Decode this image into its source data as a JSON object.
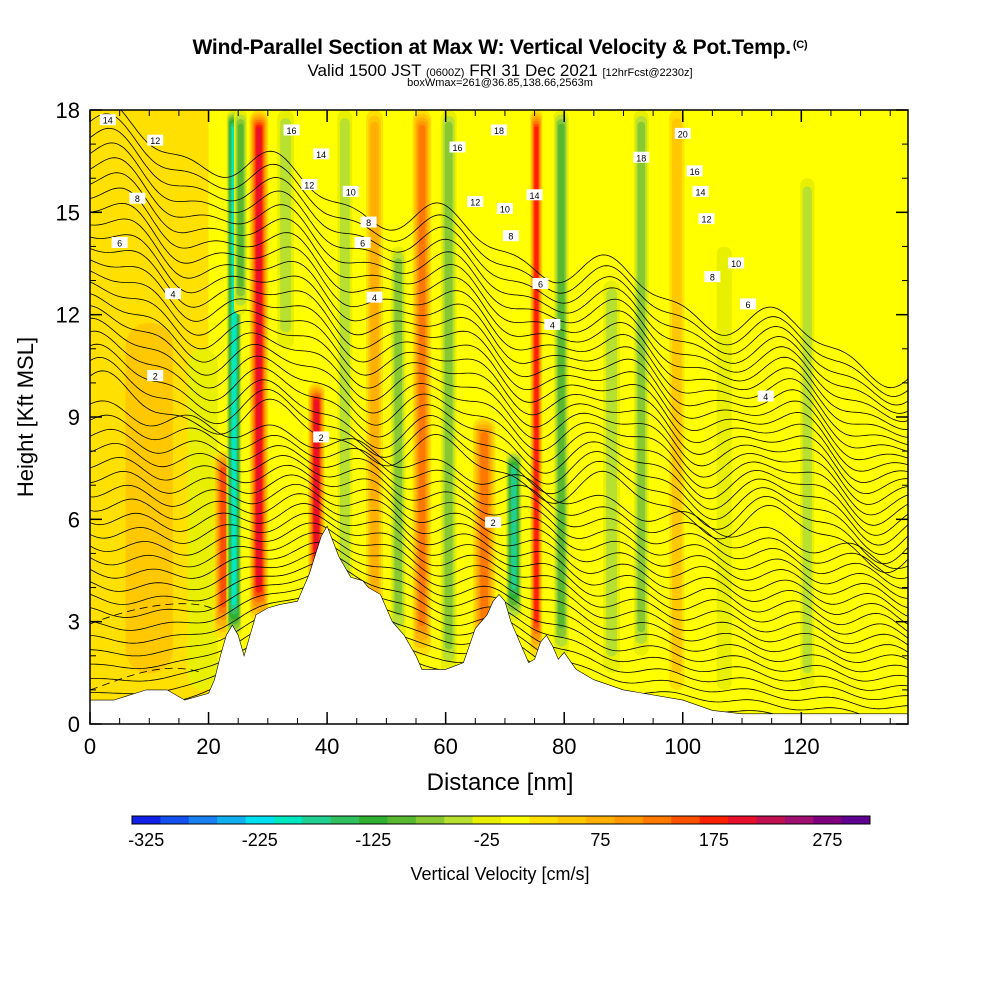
{
  "header": {
    "title": "Wind-Parallel Section at Max W: Vertical Velocity & Pot.Temp.",
    "copyright": "(C)",
    "valid_prefix": "Valid 1500 JST",
    "valid_utc": "(0600Z)",
    "valid_date": "FRI 31 Dec 2021",
    "forecast": "[12hrFcst@2230z]",
    "boxinfo": "boxWmax=261@36.85,138.66,2563m"
  },
  "chart_data": {
    "type": "heatmap",
    "xlabel": "Distance [nm]",
    "ylabel": "Height [Kft MSL]",
    "xlim": [
      0,
      138
    ],
    "ylim": [
      0,
      18
    ],
    "x_ticks": [
      "0",
      "20",
      "40",
      "60",
      "80",
      "100",
      "120"
    ],
    "y_ticks": [
      "0",
      "3",
      "6",
      "9",
      "12",
      "15",
      "18"
    ],
    "colorbar": {
      "label": "Vertical Velocity [cm/s]",
      "tick_labels": [
        "-325",
        "-225",
        "-125",
        "-25",
        "75",
        "175",
        "275"
      ],
      "levels": [
        -325,
        -300,
        -275,
        -250,
        -225,
        -200,
        -175,
        -150,
        -125,
        -100,
        -75,
        -50,
        -25,
        0,
        25,
        50,
        75,
        100,
        125,
        150,
        175,
        200,
        225,
        250,
        275,
        300
      ],
      "colors": [
        "#1020e8",
        "#1450f0",
        "#1880f0",
        "#10b0f0",
        "#00e0f0",
        "#00e8c0",
        "#20d090",
        "#30c060",
        "#30b030",
        "#58b830",
        "#88c830",
        "#b8e030",
        "#e8f000",
        "#ffff00",
        "#ffe000",
        "#ffc800",
        "#ffb000",
        "#ff9800",
        "#ff7800",
        "#ff5000",
        "#ff2000",
        "#e8102c",
        "#c01050",
        "#a01070",
        "#800080",
        "#600090"
      ]
    },
    "terrain_nm": [
      0,
      4,
      9.5,
      13,
      16,
      20,
      21,
      22,
      23,
      24,
      25,
      26,
      27,
      28,
      30,
      32,
      35,
      37,
      39,
      40,
      42,
      44,
      46,
      47,
      49,
      51,
      53,
      55,
      56,
      57,
      60,
      63,
      64,
      65,
      67,
      68,
      69,
      70,
      71,
      72,
      74,
      75,
      76,
      77,
      78,
      79,
      80,
      82,
      85,
      90,
      100,
      105,
      110,
      120,
      125,
      130,
      138
    ],
    "terrain_kft": [
      0.7,
      0.7,
      1.0,
      1.0,
      0.7,
      0.9,
      1.3,
      2.0,
      2.6,
      2.9,
      2.6,
      2.0,
      2.6,
      3.2,
      3.4,
      3.5,
      3.6,
      4.4,
      5.5,
      5.8,
      4.9,
      4.3,
      4.2,
      4.0,
      3.8,
      3.0,
      2.6,
      2.0,
      1.6,
      1.6,
      1.6,
      1.8,
      2.3,
      2.8,
      3.2,
      3.6,
      3.8,
      3.6,
      3.0,
      2.6,
      1.8,
      1.9,
      2.4,
      2.6,
      2.3,
      1.9,
      2.1,
      1.6,
      1.3,
      1.0,
      0.7,
      0.4,
      0.3,
      0.3,
      0.3,
      0.3,
      0.3
    ],
    "vertical_velocity_bands": [
      {
        "center_nm": 10,
        "width_nm": 8,
        "value": 60,
        "z_min": 1,
        "z_max": 12
      },
      {
        "center_nm": 19,
        "width_nm": 3,
        "value": -20,
        "z_min": 1,
        "z_max": 11
      },
      {
        "center_nm": 22.5,
        "width_nm": 1.8,
        "value": 170,
        "z_min": 2.5,
        "z_max": 8
      },
      {
        "center_nm": 24.3,
        "width_nm": 1.4,
        "value": -210,
        "z_min": 2.5,
        "z_max": 18
      },
      {
        "center_nm": 25.4,
        "width_nm": 1.2,
        "value": -120,
        "z_min": 12,
        "z_max": 18
      },
      {
        "center_nm": 28.5,
        "width_nm": 1.8,
        "value": 200,
        "z_min": 3,
        "z_max": 18
      },
      {
        "center_nm": 33,
        "width_nm": 1.6,
        "value": -60,
        "z_min": 11,
        "z_max": 18
      },
      {
        "center_nm": 38.2,
        "width_nm": 1.6,
        "value": 200,
        "z_min": 4,
        "z_max": 10
      },
      {
        "center_nm": 43,
        "width_nm": 1.4,
        "value": -70,
        "z_min": 3.5,
        "z_max": 18
      },
      {
        "center_nm": 48,
        "width_nm": 1.6,
        "value": 90,
        "z_min": 3,
        "z_max": 18
      },
      {
        "center_nm": 52,
        "width_nm": 1.4,
        "value": -90,
        "z_min": 2.5,
        "z_max": 14
      },
      {
        "center_nm": 56,
        "width_nm": 1.8,
        "value": 130,
        "z_min": 2,
        "z_max": 18
      },
      {
        "center_nm": 60.5,
        "width_nm": 1.5,
        "value": -80,
        "z_min": 1.5,
        "z_max": 18
      },
      {
        "center_nm": 66.5,
        "width_nm": 2.2,
        "value": 130,
        "z_min": 2,
        "z_max": 9
      },
      {
        "center_nm": 71.5,
        "width_nm": 1.5,
        "value": -190,
        "z_min": 3,
        "z_max": 8
      },
      {
        "center_nm": 75.3,
        "width_nm": 1.1,
        "value": 190,
        "z_min": 2,
        "z_max": 18
      },
      {
        "center_nm": 79.5,
        "width_nm": 1.4,
        "value": -120,
        "z_min": 2,
        "z_max": 18
      },
      {
        "center_nm": 88,
        "width_nm": 1.6,
        "value": -60,
        "z_min": 1.5,
        "z_max": 13
      },
      {
        "center_nm": 93,
        "width_nm": 1.4,
        "value": -80,
        "z_min": 2,
        "z_max": 18
      },
      {
        "center_nm": 99,
        "width_nm": 1.4,
        "value": 60,
        "z_min": 1,
        "z_max": 18
      },
      {
        "center_nm": 107,
        "width_nm": 1.4,
        "value": -40,
        "z_min": 1,
        "z_max": 14
      },
      {
        "center_nm": 121,
        "width_nm": 1.3,
        "value": -55,
        "z_min": 1,
        "z_max": 16
      }
    ],
    "potential_temperature": {
      "units": "deg C",
      "contour_levels": [
        -2,
        0,
        2,
        4,
        6,
        8,
        10,
        12,
        14,
        16,
        18,
        20
      ],
      "contour_labels": [
        {
          "x": 3,
          "y": 17.7,
          "text": "14"
        },
        {
          "x": 11,
          "y": 17.1,
          "text": "12"
        },
        {
          "x": 8,
          "y": 15.4,
          "text": "8"
        },
        {
          "x": 5,
          "y": 14.1,
          "text": "6"
        },
        {
          "x": 14,
          "y": 12.6,
          "text": "4"
        },
        {
          "x": 11,
          "y": 10.2,
          "text": "2"
        },
        {
          "x": 34,
          "y": 17.4,
          "text": "16"
        },
        {
          "x": 39,
          "y": 16.7,
          "text": "14"
        },
        {
          "x": 37,
          "y": 15.8,
          "text": "12"
        },
        {
          "x": 44,
          "y": 15.6,
          "text": "10"
        },
        {
          "x": 47,
          "y": 14.7,
          "text": "8"
        },
        {
          "x": 46,
          "y": 14.1,
          "text": "6"
        },
        {
          "x": 48,
          "y": 12.5,
          "text": "4"
        },
        {
          "x": 39,
          "y": 8.4,
          "text": "2"
        },
        {
          "x": 62,
          "y": 16.9,
          "text": "16"
        },
        {
          "x": 69,
          "y": 17.4,
          "text": "18"
        },
        {
          "x": 65,
          "y": 15.3,
          "text": "12"
        },
        {
          "x": 70,
          "y": 15.1,
          "text": "10"
        },
        {
          "x": 75,
          "y": 15.5,
          "text": "14"
        },
        {
          "x": 71,
          "y": 14.3,
          "text": "8"
        },
        {
          "x": 76,
          "y": 12.9,
          "text": "6"
        },
        {
          "x": 78,
          "y": 11.7,
          "text": "4"
        },
        {
          "x": 68,
          "y": 5.9,
          "text": "2"
        },
        {
          "x": 93,
          "y": 16.6,
          "text": "18"
        },
        {
          "x": 100,
          "y": 17.3,
          "text": "20"
        },
        {
          "x": 102,
          "y": 16.2,
          "text": "16"
        },
        {
          "x": 103,
          "y": 15.6,
          "text": "14"
        },
        {
          "x": 104,
          "y": 14.8,
          "text": "12"
        },
        {
          "x": 109,
          "y": 13.5,
          "text": "10"
        },
        {
          "x": 105,
          "y": 13.1,
          "text": "8"
        },
        {
          "x": 111,
          "y": 12.3,
          "text": "6"
        },
        {
          "x": 114,
          "y": 9.6,
          "text": "4"
        }
      ]
    },
    "grid": false,
    "legend": "colorbar-bottom"
  }
}
